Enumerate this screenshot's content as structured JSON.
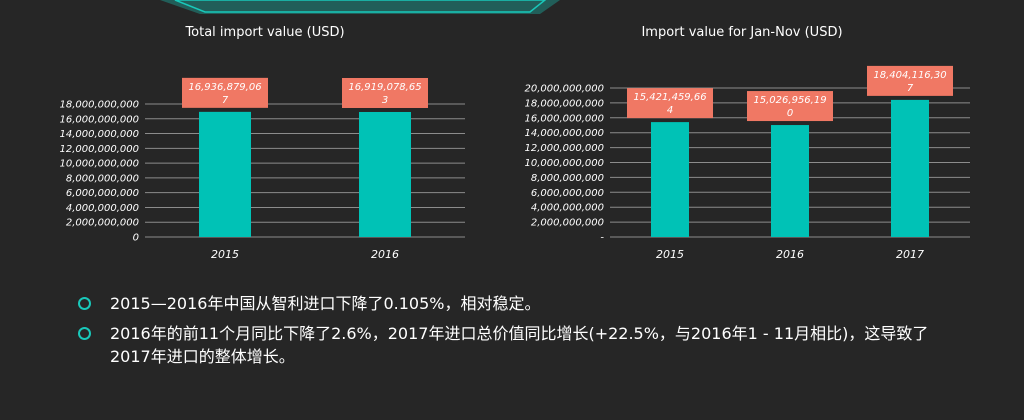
{
  "colors": {
    "bar": "#00c2b6",
    "label_bg": "#f07864",
    "grid": "#8c8c8c",
    "accent": "#19c8ba"
  },
  "chart_data": [
    {
      "type": "bar",
      "title": "Total import value (USD)",
      "categories": [
        "2015",
        "2016"
      ],
      "values": [
        16936879067,
        16919078653
      ],
      "data_labels": [
        "16,936,879,067",
        "16,919,078,653"
      ],
      "ylim": [
        0,
        18000000000
      ],
      "yticks": [
        "0",
        "2,000,000,000",
        "4,000,000,000",
        "6,000,000,000",
        "8,000,000,000",
        "10,000,000,000",
        "12,000,000,000",
        "14,000,000,000",
        "16,000,000,000",
        "18,000,000,000"
      ],
      "grid": true
    },
    {
      "type": "bar",
      "title": "Import value for Jan-Nov (USD)",
      "categories": [
        "2015",
        "2016",
        "2017"
      ],
      "values": [
        15421459664,
        15026956190,
        18404116307
      ],
      "data_labels": [
        "15,421,459,664",
        "15,026,956,190",
        "18,404,116,307"
      ],
      "ylim": [
        0,
        20000000000
      ],
      "yticks": [
        "-",
        "2,000,000,000",
        "4,000,000,000",
        "6,000,000,000",
        "8,000,000,000",
        "10,000,000,000",
        "12,000,000,000",
        "14,000,000,000",
        "16,000,000,000",
        "18,000,000,000",
        "20,000,000,000"
      ],
      "grid": true
    }
  ],
  "bullets": [
    "2015—2016年中国从智利进口下降了0.105%，相对稳定。",
    "2016年的前11个月同比下降了2.6%，2017年进口总价值同比增长(+22.5%，与2016年1 - 11月相比)，这导致了2017年进口的整体增长。"
  ]
}
